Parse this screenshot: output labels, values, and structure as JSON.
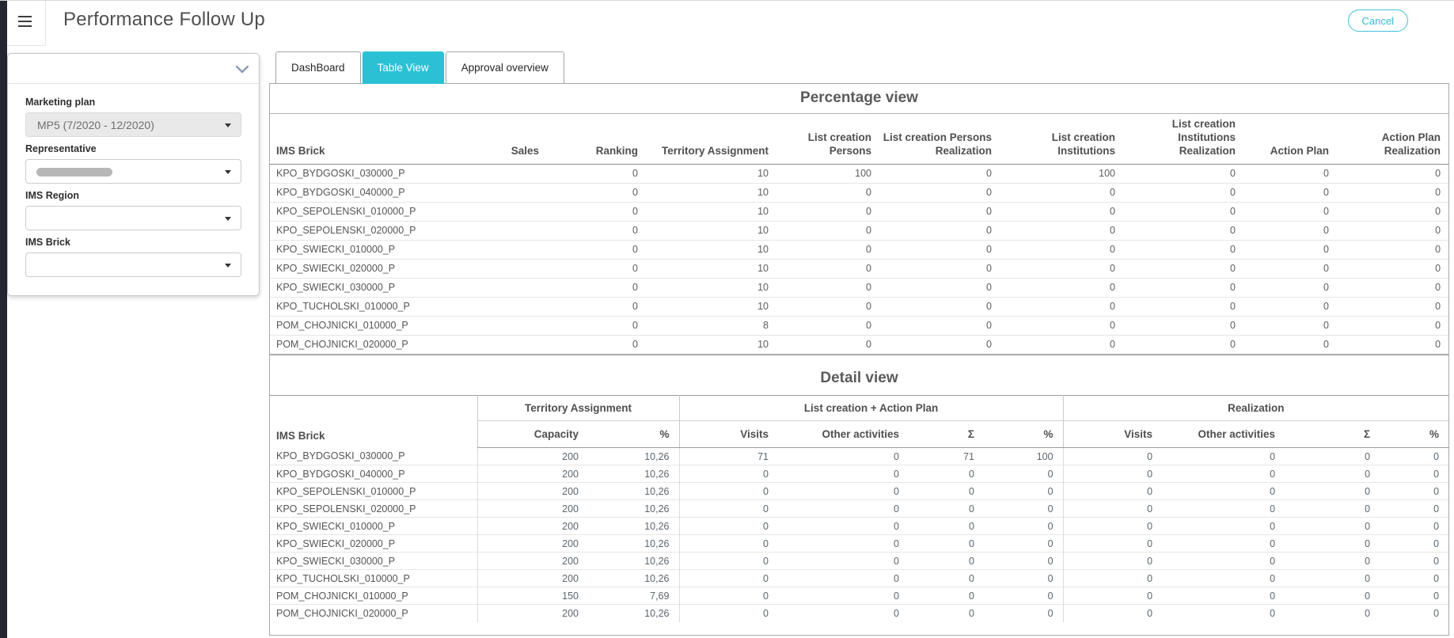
{
  "header": {
    "title": "Performance Follow Up",
    "cancel_label": "Cancel"
  },
  "filter_panel": {
    "fields": [
      {
        "label": "Marketing plan",
        "value": "MP5 (7/2020 - 12/2020)",
        "state": "disabled"
      },
      {
        "label": "Representative",
        "value": "",
        "state": "redacted"
      },
      {
        "label": "IMS Region",
        "value": "",
        "state": "empty"
      },
      {
        "label": "IMS Brick",
        "value": "",
        "state": "empty"
      }
    ]
  },
  "tabs": [
    {
      "label": "DashBoard",
      "active": false
    },
    {
      "label": "Table View",
      "active": true
    },
    {
      "label": "Approval overview",
      "active": false
    }
  ],
  "percentage_view": {
    "title": "Percentage view",
    "columns": [
      "IMS Brick",
      "Sales",
      "Ranking",
      "Territory Assignment",
      "List creation Persons",
      "List creation Persons Realization",
      "List creation Institutions",
      "List creation Institutions Realization",
      "Action Plan",
      "Action Plan Realization"
    ],
    "rows": [
      [
        "KPO_BYDGOSKI_030000_P",
        "",
        "0",
        "10",
        "100",
        "0",
        "100",
        "0",
        "0",
        "0"
      ],
      [
        "KPO_BYDGOSKI_040000_P",
        "",
        "0",
        "10",
        "0",
        "0",
        "0",
        "0",
        "0",
        "0"
      ],
      [
        "KPO_SEPOLENSKI_010000_P",
        "",
        "0",
        "10",
        "0",
        "0",
        "0",
        "0",
        "0",
        "0"
      ],
      [
        "KPO_SEPOLENSKI_020000_P",
        "",
        "0",
        "10",
        "0",
        "0",
        "0",
        "0",
        "0",
        "0"
      ],
      [
        "KPO_SWIECKI_010000_P",
        "",
        "0",
        "10",
        "0",
        "0",
        "0",
        "0",
        "0",
        "0"
      ],
      [
        "KPO_SWIECKI_020000_P",
        "",
        "0",
        "10",
        "0",
        "0",
        "0",
        "0",
        "0",
        "0"
      ],
      [
        "KPO_SWIECKI_030000_P",
        "",
        "0",
        "10",
        "0",
        "0",
        "0",
        "0",
        "0",
        "0"
      ],
      [
        "KPO_TUCHOLSKI_010000_P",
        "",
        "0",
        "10",
        "0",
        "0",
        "0",
        "0",
        "0",
        "0"
      ],
      [
        "POM_CHOJNICKI_010000_P",
        "",
        "0",
        "8",
        "0",
        "0",
        "0",
        "0",
        "0",
        "0"
      ],
      [
        "POM_CHOJNICKI_020000_P",
        "",
        "0",
        "10",
        "0",
        "0",
        "0",
        "0",
        "0",
        "0"
      ]
    ]
  },
  "detail_view": {
    "title": "Detail view",
    "groups": [
      {
        "label": "IMS Brick",
        "colspan": 1,
        "rowspan": 2
      },
      {
        "label": "Territory Assignment",
        "colspan": 2,
        "rowspan": 1
      },
      {
        "label": "List creation + Action Plan",
        "colspan": 4,
        "rowspan": 1
      },
      {
        "label": "Realization",
        "colspan": 4,
        "rowspan": 1
      }
    ],
    "sub_columns": [
      "Capacity",
      "%",
      "Visits",
      "Other activities",
      "Σ",
      "%",
      "Visits",
      "Other activities",
      "Σ",
      "%"
    ],
    "rows": [
      [
        "KPO_BYDGOSKI_030000_P",
        "200",
        "10,26",
        "71",
        "0",
        "71",
        "100",
        "0",
        "0",
        "0",
        "0"
      ],
      [
        "KPO_BYDGOSKI_040000_P",
        "200",
        "10,26",
        "0",
        "0",
        "0",
        "0",
        "0",
        "0",
        "0",
        "0"
      ],
      [
        "KPO_SEPOLENSKI_010000_P",
        "200",
        "10,26",
        "0",
        "0",
        "0",
        "0",
        "0",
        "0",
        "0",
        "0"
      ],
      [
        "KPO_SEPOLENSKI_020000_P",
        "200",
        "10,26",
        "0",
        "0",
        "0",
        "0",
        "0",
        "0",
        "0",
        "0"
      ],
      [
        "KPO_SWIECKI_010000_P",
        "200",
        "10,26",
        "0",
        "0",
        "0",
        "0",
        "0",
        "0",
        "0",
        "0"
      ],
      [
        "KPO_SWIECKI_020000_P",
        "200",
        "10,26",
        "0",
        "0",
        "0",
        "0",
        "0",
        "0",
        "0",
        "0"
      ],
      [
        "KPO_SWIECKI_030000_P",
        "200",
        "10,26",
        "0",
        "0",
        "0",
        "0",
        "0",
        "0",
        "0",
        "0"
      ],
      [
        "KPO_TUCHOLSKI_010000_P",
        "200",
        "10,26",
        "0",
        "0",
        "0",
        "0",
        "0",
        "0",
        "0",
        "0"
      ],
      [
        "POM_CHOJNICKI_010000_P",
        "150",
        "7,69",
        "0",
        "0",
        "0",
        "0",
        "0",
        "0",
        "0",
        "0"
      ],
      [
        "POM_CHOJNICKI_020000_P",
        "200",
        "10,26",
        "0",
        "0",
        "0",
        "0",
        "0",
        "0",
        "0",
        "0"
      ]
    ]
  },
  "colors": {
    "accent_cyan": "#2bc1d5",
    "sidebar_rail": "#23272f"
  }
}
